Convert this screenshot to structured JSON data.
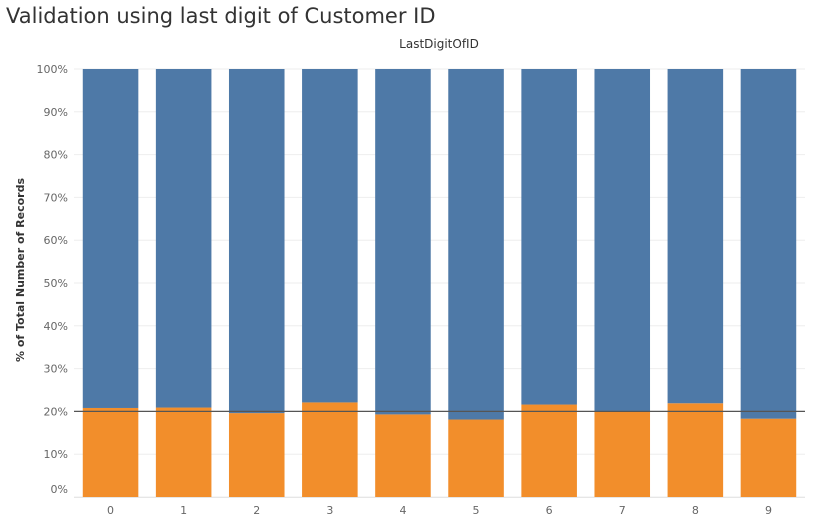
{
  "chart_data": {
    "type": "bar",
    "stacked": true,
    "title": "Validation using last digit of Customer ID",
    "header_label": "LastDigitOfID",
    "xlabel": "",
    "ylabel": "% of Total Number of Records",
    "ylim": [
      0,
      100
    ],
    "y_ticks": [
      "0%",
      "10%",
      "20%",
      "30%",
      "40%",
      "50%",
      "60%",
      "70%",
      "80%",
      "90%",
      "100%"
    ],
    "categories": [
      "0",
      "1",
      "2",
      "3",
      "4",
      "5",
      "6",
      "7",
      "8",
      "9"
    ],
    "series": [
      {
        "values": [
          20.8,
          20.9,
          19.6,
          22.1,
          19.3,
          18.1,
          21.6,
          20.1,
          21.9,
          18.3
        ]
      },
      {
        "values": [
          79.2,
          79.1,
          80.4,
          77.9,
          80.7,
          81.9,
          78.4,
          79.9,
          78.1,
          81.7
        ]
      }
    ],
    "reference_line": 20,
    "grid": true,
    "colors": {
      "series_0": "#f28e2b",
      "series_1": "#4e79a7",
      "reference_line": "#555555",
      "grid": "#eeeeee",
      "text": "#666666"
    }
  }
}
